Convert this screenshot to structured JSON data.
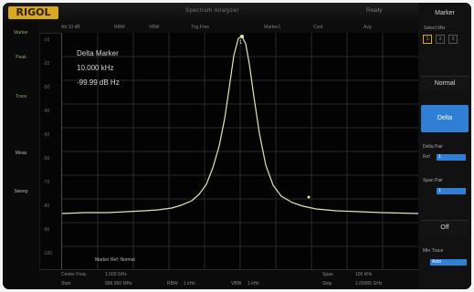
{
  "top": {
    "brand": "RIGOL",
    "title": "Spectrum Analyzer",
    "right_text": "Ready"
  },
  "left": {
    "items": [
      "Marker",
      "Peak",
      "Trace",
      "Meas",
      "Sweep"
    ]
  },
  "infobar": {
    "items": [
      "Att 10 dB",
      "RBW",
      "VBW",
      "Trig Free",
      "Marker1",
      "Cont",
      "Avg"
    ]
  },
  "plot": {
    "y_labels": [
      "-10",
      "-20",
      "-30",
      "-40",
      "-50",
      "-60",
      "-70",
      "-80",
      "-90",
      "-100"
    ],
    "marker_label": "1",
    "delta": {
      "mode": "Delta Marker",
      "freq": "10.000 kHz",
      "amplitude": "-99.99 dB Hz"
    },
    "marker_footer": "Marker Ref: Normal",
    "trace_color": "#dbe9b8",
    "grid_color": "#2a2a2a"
  },
  "bottom": {
    "center_label": "Center Freq",
    "center_value": "1.000 GHz",
    "span_label": "Span",
    "span_value": "100 kHz",
    "start_label": "Start",
    "start_value": "999.950 MHz",
    "stop_label": "Stop",
    "stop_value": "1.00005 GHz",
    "rbw_label": "RBW",
    "rbw_value": "1 kHz",
    "vbw_label": "VBW",
    "vbw_value": "1 kHz"
  },
  "right_panel": {
    "title": "Marker",
    "select": "Select Mkr",
    "tabs": [
      "1",
      "2",
      "3"
    ],
    "normal": "Normal",
    "delta": "Delta",
    "delta_pair": "Delta Pair",
    "ref": "Ref",
    "ref_value": "1",
    "span_pair": "Span Pair",
    "span_value": "1",
    "off": "Off",
    "mkr_trace": "Mkr Trace",
    "trace_value": "Auto"
  },
  "colors": {
    "accent": "#2f7fd7",
    "brand": "#d8a820",
    "background": "#050505"
  }
}
